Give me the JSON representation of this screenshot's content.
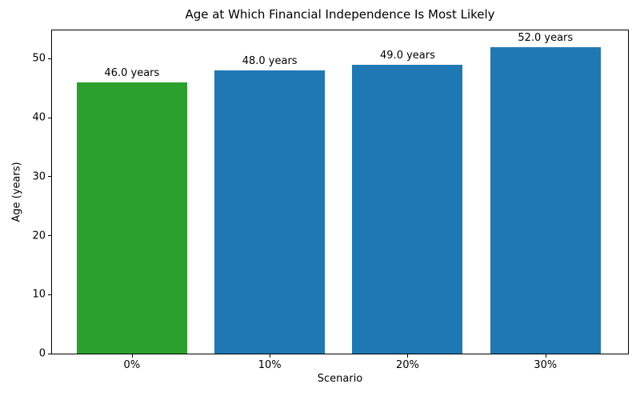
{
  "chart_data": {
    "type": "bar",
    "title": "Age at Which Financial Independence Is Most Likely",
    "xlabel": "Scenario",
    "ylabel": "Age (years)",
    "categories": [
      "0%",
      "10%",
      "20%",
      "30%"
    ],
    "values": [
      46.0,
      48.0,
      49.0,
      52.0
    ],
    "bar_labels": [
      "46.0 years",
      "48.0 years",
      "49.0 years",
      "52.0 years"
    ],
    "bar_colors": [
      "#2ca02c",
      "#1f77b4",
      "#1f77b4",
      "#1f77b4"
    ],
    "yticks": [
      0,
      10,
      20,
      30,
      40,
      50
    ],
    "ylim": [
      0,
      54.8
    ],
    "grid": false,
    "legend": "none",
    "background_color": "#ffffff",
    "axis_color": "#000000"
  }
}
